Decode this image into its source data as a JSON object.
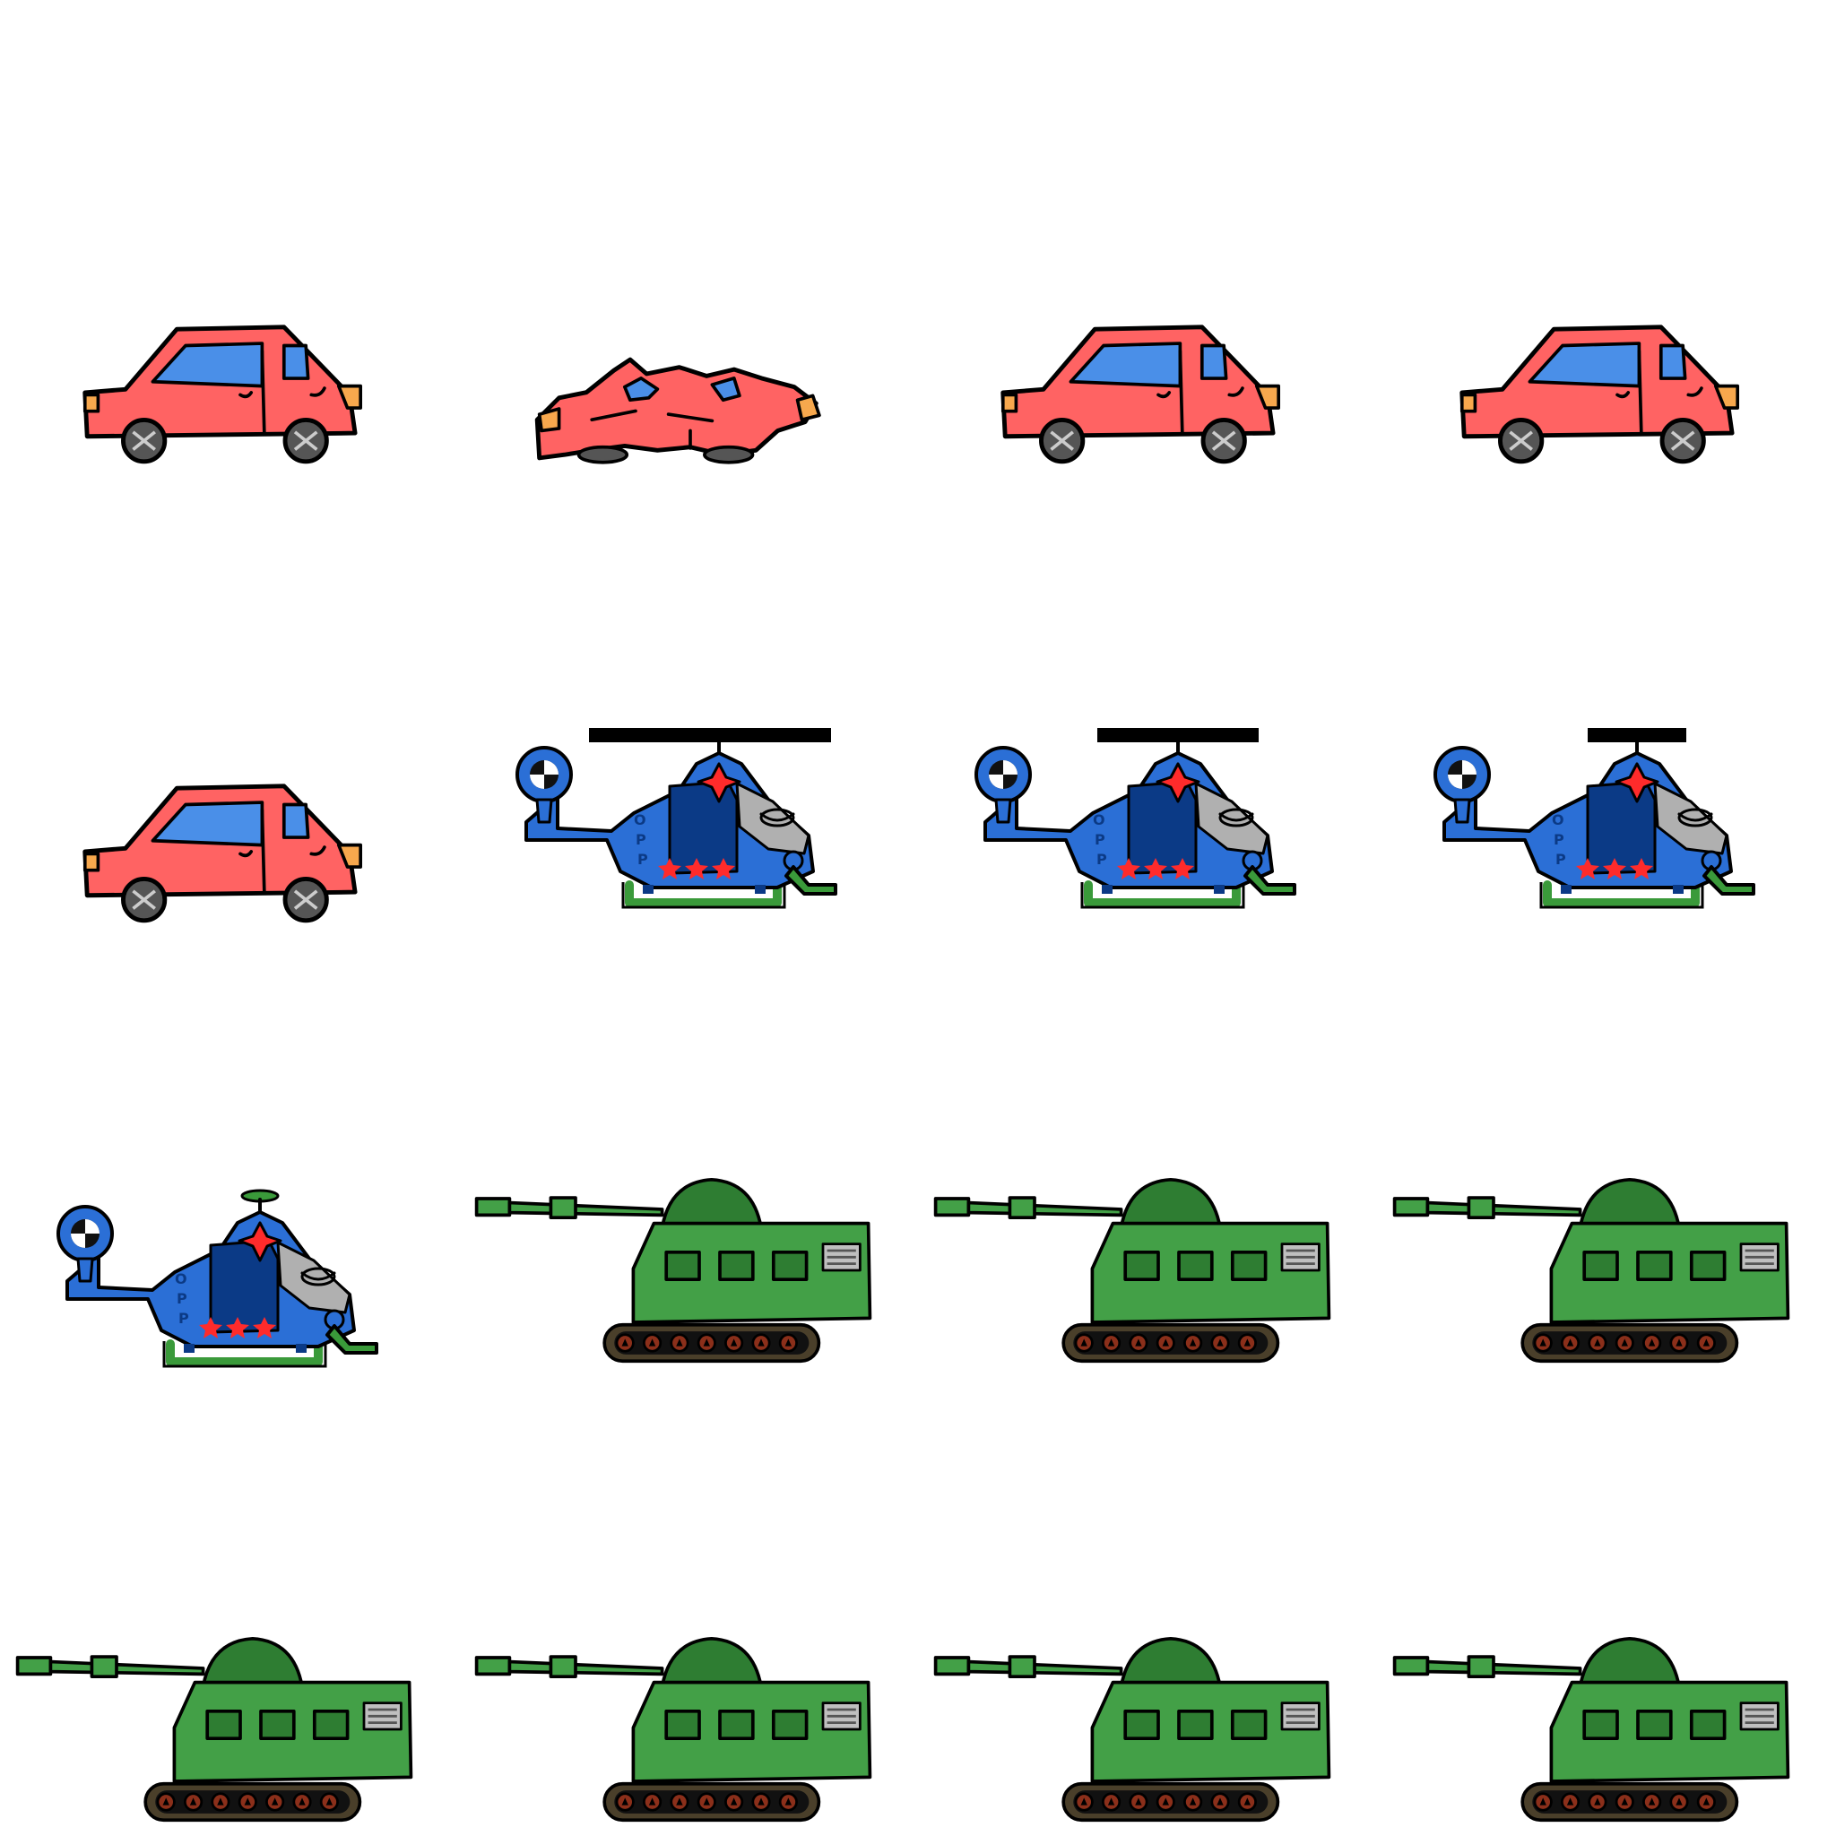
{
  "sheet": {
    "background": "#ffffff",
    "rows": [
      {
        "frames": [
          {
            "sprite": "red-car",
            "state": "intact"
          },
          {
            "sprite": "red-car",
            "state": "wrecked"
          },
          {
            "sprite": "red-car",
            "state": "intact"
          },
          {
            "sprite": "red-car",
            "state": "intact"
          }
        ]
      },
      {
        "frames": [
          {
            "sprite": "red-car",
            "state": "intact"
          },
          {
            "sprite": "blue-helicopter",
            "rotor": "wide"
          },
          {
            "sprite": "blue-helicopter",
            "rotor": "medium"
          },
          {
            "sprite": "blue-helicopter",
            "rotor": "short"
          }
        ]
      },
      {
        "frames": [
          {
            "sprite": "blue-helicopter",
            "rotor": "none"
          },
          {
            "sprite": "green-tank"
          },
          {
            "sprite": "green-tank"
          },
          {
            "sprite": "green-tank"
          }
        ]
      },
      {
        "frames": [
          {
            "sprite": "green-tank"
          },
          {
            "sprite": "green-tank"
          },
          {
            "sprite": "green-tank"
          },
          {
            "sprite": "green-tank"
          }
        ]
      }
    ]
  },
  "helicopter": {
    "tail_letters": [
      "O",
      "P",
      "P"
    ]
  },
  "colors": {
    "car_body": "#ff6363",
    "car_window": "#4a8fe8",
    "car_light": "#f7a84d",
    "wheel": "#555555",
    "heli_body": "#2b6fd6",
    "heli_cockpit": "#0b3a86",
    "heli_canopy": "#b0b0b0",
    "heli_skid": "#3a9a3a",
    "star": "#ff2b2b",
    "tank_hull": "#43a047",
    "tank_turret": "#2e7d32",
    "tank_track": "#4a3f2a",
    "tank_wheel": "#8b2f1a"
  }
}
